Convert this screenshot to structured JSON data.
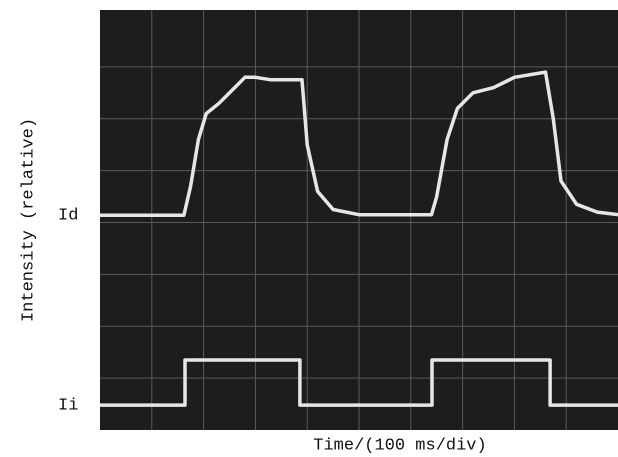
{
  "chart_data": {
    "type": "line",
    "x_label": "Time/(100 ms/div)",
    "y_label": "Intensity (relative)",
    "xlim": [
      0,
      10
    ],
    "ylim": [
      0,
      8
    ],
    "series": [
      {
        "name": "Id",
        "color": "#e6e6e6",
        "x": [
          0,
          1.62,
          1.75,
          1.9,
          2.05,
          2.3,
          2.6,
          2.8,
          3.0,
          3.3,
          3.9,
          4.0,
          4.2,
          4.5,
          5.0,
          6.4,
          6.5,
          6.7,
          6.9,
          7.2,
          7.6,
          8.0,
          8.6,
          8.75,
          8.9,
          9.2,
          9.6,
          10
        ],
        "values": [
          4.14,
          4.14,
          4.7,
          5.6,
          6.1,
          6.3,
          6.6,
          6.8,
          6.8,
          6.75,
          6.75,
          5.5,
          4.6,
          4.25,
          4.15,
          4.15,
          4.5,
          5.6,
          6.2,
          6.5,
          6.6,
          6.8,
          6.9,
          6.0,
          4.8,
          4.35,
          4.2,
          4.15
        ]
      },
      {
        "name": "Ii",
        "color": "#e6e6e6",
        "x": [
          0,
          1.64,
          1.64,
          3.86,
          3.86,
          6.41,
          6.41,
          8.69,
          8.69,
          10
        ],
        "values": [
          0.48,
          0.48,
          1.35,
          1.35,
          0.48,
          0.48,
          1.35,
          1.35,
          0.48,
          0.48
        ]
      }
    ]
  }
}
